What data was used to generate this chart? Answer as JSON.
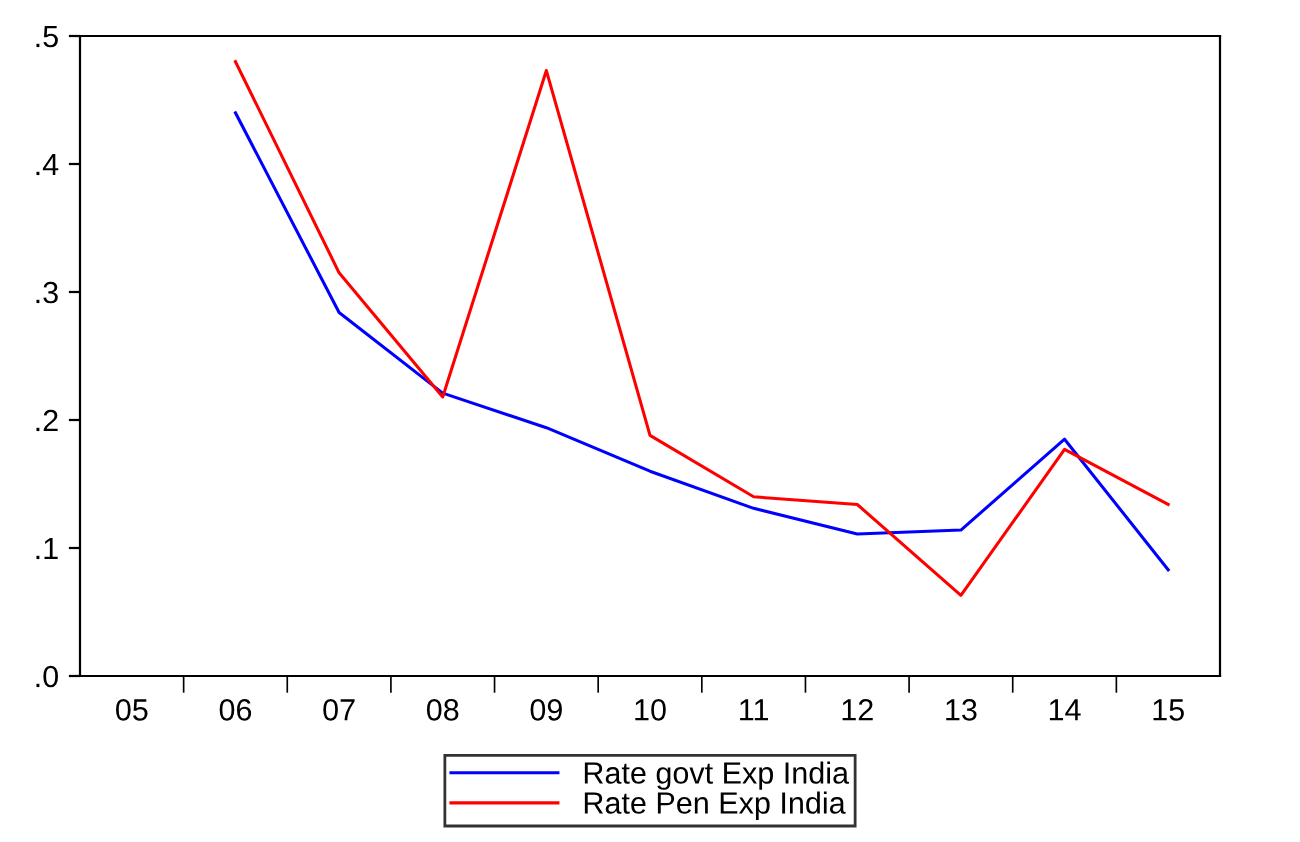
{
  "chart_data": {
    "type": "line",
    "categories": [
      "05",
      "06",
      "07",
      "08",
      "09",
      "10",
      "11",
      "12",
      "13",
      "14",
      "15"
    ],
    "series": [
      {
        "name": "Rate govt Exp India",
        "color": "#0000ff",
        "values": [
          null,
          0.44,
          0.284,
          0.221,
          0.194,
          0.16,
          0.131,
          0.111,
          0.114,
          0.185,
          0.083
        ]
      },
      {
        "name": "Rate Pen Exp India",
        "color": "#ff0000",
        "values": [
          null,
          0.48,
          0.315,
          0.218,
          0.473,
          0.188,
          0.14,
          0.134,
          0.063,
          0.177,
          0.134
        ]
      }
    ],
    "ylim": [
      0,
      0.5
    ],
    "yticks": [
      {
        "value": 0,
        "label": ".0"
      },
      {
        "value": 0.1,
        "label": ".1"
      },
      {
        "value": 0.2,
        "label": ".2"
      },
      {
        "value": 0.3,
        "label": ".3"
      },
      {
        "value": 0.4,
        "label": ".4"
      },
      {
        "value": 0.5,
        "label": ".5"
      }
    ],
    "grid": false,
    "legend": "bottom",
    "marker": "none",
    "line_style": "solid"
  }
}
